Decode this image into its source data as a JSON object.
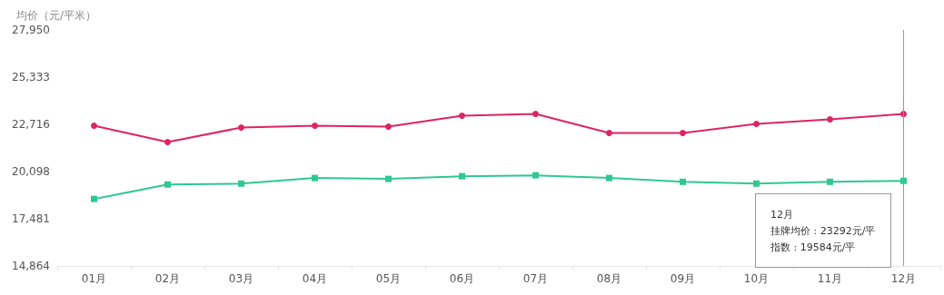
{
  "chart_data": {
    "type": "line",
    "ylabel": "均价（元/平米）",
    "categories": [
      "01月",
      "02月",
      "03月",
      "04月",
      "05月",
      "06月",
      "07月",
      "08月",
      "09月",
      "10月",
      "11月",
      "12月"
    ],
    "series": [
      {
        "color": "#dd2464",
        "marker": "circle",
        "values": [
          22640,
          21730,
          22540,
          22640,
          22590,
          23190,
          23292,
          22240,
          22240,
          22740,
          22990,
          23292
        ]
      },
      {
        "color": "#2ec991",
        "marker": "square",
        "values": [
          18580,
          19380,
          19430,
          19740,
          19690,
          19840,
          19890,
          19740,
          19530,
          19430,
          19530,
          19584
        ]
      }
    ],
    "ylim": [
      14864,
      27950
    ],
    "yticks": [
      {
        "value": 14864,
        "label": "14,864"
      },
      {
        "value": 17481,
        "label": "17,481"
      },
      {
        "value": 20098,
        "label": "20,098"
      },
      {
        "value": 22716,
        "label": "22,716"
      },
      {
        "value": 25333,
        "label": "25,333"
      },
      {
        "value": 27950,
        "label": "27,950"
      }
    ],
    "grid": false,
    "ref_lines": [
      {
        "axis": "x",
        "value": "12月",
        "color": "#999999"
      }
    ],
    "annotations": [
      "12月",
      "挂牌均价 : 23292元/平",
      "指数 : 19584元/平"
    ]
  }
}
